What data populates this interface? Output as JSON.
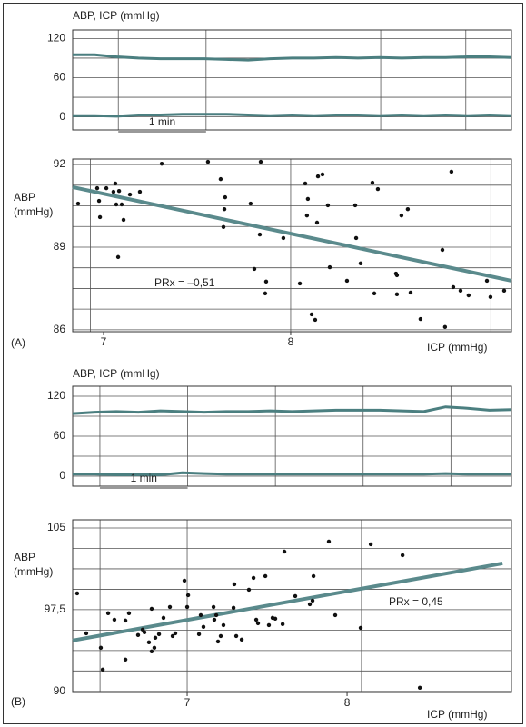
{
  "chart_data": [
    {
      "type": "line",
      "title": "ABP, ICP (mmHg)",
      "x": [
        0,
        0.25,
        0.5,
        0.75,
        1,
        1.25,
        1.5,
        1.75,
        2,
        2.25,
        2.5,
        2.75,
        3,
        3.25,
        3.5,
        3.75,
        4,
        4.25,
        4.5,
        4.75,
        5
      ],
      "series": [
        {
          "color": "#4b7f80",
          "values": [
            95,
            95,
            92,
            90,
            89,
            89,
            89,
            88,
            87,
            89,
            90,
            90,
            91,
            90,
            91,
            90,
            91,
            91,
            92,
            92,
            91
          ]
        },
        {
          "color": "#4b7f80",
          "values": [
            2,
            2,
            1,
            3,
            3,
            4,
            4,
            4,
            3,
            2,
            3,
            2,
            3,
            3,
            2,
            3,
            2,
            3,
            2,
            3,
            2
          ]
        }
      ],
      "xlim": [
        0,
        5
      ],
      "ylim": [
        -20,
        133
      ],
      "yticks": [
        0,
        60,
        120
      ],
      "y_minor_grid": [
        30,
        90
      ],
      "x_grid": [
        0.52,
        1.52,
        2.51,
        3.51,
        4.48
      ],
      "scale_bar": {
        "label": "1 min",
        "from": 0.52,
        "to": 1.52
      }
    },
    {
      "type": "scatter",
      "panel_label": "(A)",
      "y_label": [
        "ABP",
        "(mmHg)"
      ],
      "x_label": "ICP (mmHg)",
      "annotation": "PRx = –0,51",
      "x": [
        6.864,
        6.966,
        6.976,
        6.981,
        7.015,
        7.053,
        7.063,
        7.068,
        7.083,
        7.097,
        7.107,
        7.078,
        7.141,
        7.194,
        7.311,
        7.558,
        7.626,
        7.65,
        7.646,
        7.641,
        7.786,
        7.84,
        7.835,
        7.806,
        7.869,
        7.864,
        7.961,
        8.049,
        8.078,
        8.087,
        8.092,
        8.112,
        8.131,
        8.146,
        8.141,
        8.17,
        8.199,
        8.209,
        8.301,
        8.345,
        8.35,
        8.374,
        8.437,
        8.466,
        8.447,
        8.563,
        8.568,
        8.568,
        8.592,
        8.626,
        8.641,
        8.694,
        8.811,
        8.825,
        8.859,
        8.869,
        8.908,
        8.951,
        9.049,
        9.068,
        9.141
      ],
      "y": [
        90.58,
        91.14,
        90.68,
        90.09,
        91.14,
        91.01,
        91.31,
        90.55,
        91.04,
        90.55,
        89.99,
        88.64,
        90.91,
        91.01,
        92.03,
        92.1,
        91.47,
        90.81,
        90.38,
        89.73,
        90.58,
        92.1,
        89.46,
        88.21,
        87.75,
        87.32,
        89.33,
        87.68,
        91.31,
        90.15,
        90.75,
        86.56,
        86.36,
        91.57,
        89.89,
        91.64,
        90.52,
        88.27,
        87.78,
        90.52,
        89.33,
        88.41,
        91.34,
        91.11,
        87.32,
        88.04,
        87.98,
        87.29,
        90.15,
        90.38,
        87.35,
        86.39,
        88.9,
        86.1,
        91.74,
        87.55,
        87.42,
        87.25,
        87.78,
        87.19,
        87.42
      ],
      "fit": {
        "color": "#5a8a8c",
        "x": [
          6.835,
          9.18
        ],
        "y": [
          91.18,
          87.78
        ]
      },
      "xlim": [
        6.835,
        9.18
      ],
      "ylim": [
        85.93,
        92.2
      ],
      "xticks": [
        7,
        8
      ],
      "yticks": [
        86,
        89,
        92
      ],
      "y_minor_grid": [
        86.75,
        87.5,
        88.25,
        89.75,
        90.5,
        91.25
      ],
      "x_grid": [
        6.93,
        8,
        9.07
      ]
    },
    {
      "type": "line",
      "title": "ABP, ICP (mmHg)",
      "x": [
        0,
        0.25,
        0.5,
        0.75,
        1,
        1.25,
        1.5,
        1.75,
        2,
        2.25,
        2.5,
        2.75,
        3,
        3.25,
        3.5,
        3.75,
        4,
        4.25,
        4.5,
        4.75,
        5
      ],
      "series": [
        {
          "color": "#4b7f80",
          "values": [
            94,
            96,
            97,
            96,
            98,
            97,
            96,
            97,
            97,
            98,
            97,
            98,
            99,
            99,
            99,
            98,
            97,
            104,
            102,
            99,
            100
          ]
        },
        {
          "color": "#4b7f80",
          "values": [
            3,
            3,
            2,
            2,
            2,
            5,
            4,
            3,
            3,
            3,
            3,
            3,
            3,
            3,
            3,
            3,
            3,
            4,
            3,
            3,
            3
          ]
        }
      ],
      "xlim": [
        0,
        5
      ],
      "ylim": [
        -15,
        135
      ],
      "yticks": [
        0,
        60,
        120
      ],
      "y_minor_grid": [
        30,
        90
      ],
      "x_grid": [
        0.31,
        1.31,
        2.31,
        3.31,
        4.31
      ],
      "scale_bar": {
        "label": "1 min",
        "from": 0.31,
        "to": 1.31
      }
    },
    {
      "type": "scatter",
      "panel_label": "(B)",
      "y_label": [
        "ABP",
        "(mmHg)"
      ],
      "x_label": "ICP (mmHg)",
      "annotation": "PRx = 0,45",
      "x": [
        6.312,
        6.369,
        6.46,
        6.472,
        6.506,
        6.545,
        6.614,
        6.614,
        6.636,
        6.693,
        6.722,
        6.733,
        6.761,
        6.778,
        6.778,
        6.795,
        6.801,
        6.824,
        6.852,
        6.892,
        6.909,
        6.926,
        6.983,
        7.0,
        7.006,
        7.074,
        7.085,
        7.102,
        7.165,
        7.17,
        7.182,
        7.193,
        7.21,
        7.227,
        7.29,
        7.295,
        7.307,
        7.341,
        7.386,
        7.415,
        7.432,
        7.443,
        7.489,
        7.511,
        7.534,
        7.551,
        7.597,
        7.608,
        7.676,
        7.767,
        7.784,
        7.79,
        7.886,
        7.926,
        8.085,
        8.148,
        8.347,
        8.455
      ],
      "y": [
        99.0,
        95.33,
        94.0,
        92.0,
        97.17,
        96.58,
        96.5,
        92.92,
        97.17,
        95.17,
        95.67,
        95.42,
        94.5,
        97.58,
        93.67,
        94.0,
        94.92,
        95.25,
        96.75,
        97.75,
        95.08,
        95.33,
        100.17,
        97.75,
        98.83,
        95.25,
        97.0,
        95.92,
        97.75,
        96.58,
        97.0,
        94.58,
        95.08,
        96.08,
        97.67,
        99.83,
        95.08,
        94.75,
        99.33,
        100.42,
        96.58,
        96.25,
        100.58,
        96.08,
        96.75,
        96.67,
        96.17,
        102.83,
        98.75,
        98.0,
        98.33,
        100.58,
        103.75,
        97.0,
        95.83,
        103.5,
        102.5,
        90.33
      ],
      "fit": {
        "color": "#5a8a8c",
        "x": [
          6.284,
          8.972
        ],
        "y": [
          94.67,
          101.75
        ]
      },
      "xlim": [
        6.284,
        9.028
      ],
      "ylim": [
        89.9,
        105.75
      ],
      "xticks": [
        7,
        8
      ],
      "yticks": [
        90,
        {
          "value": 97.5,
          "label": "97,5"
        },
        105
      ],
      "y_minor_grid": [
        91.875,
        93.75,
        95.625,
        99.375,
        101.25,
        103.125
      ],
      "x_grid": [
        6.455,
        7,
        8.09
      ]
    }
  ]
}
